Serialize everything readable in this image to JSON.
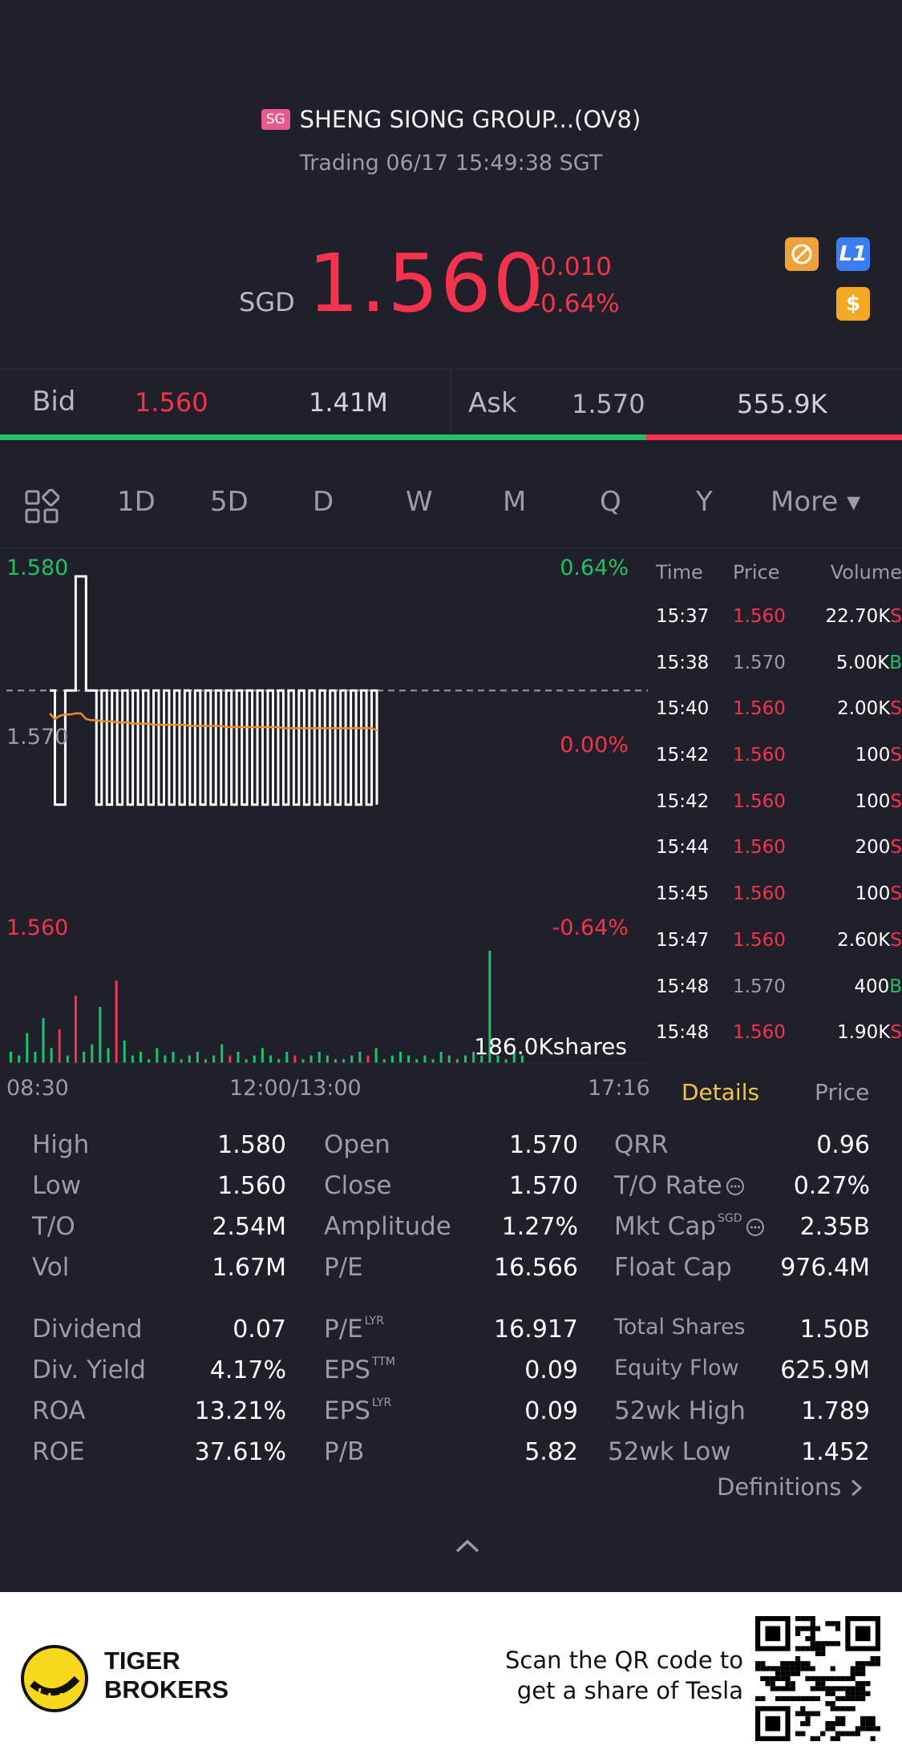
{
  "header": {
    "market_badge": "SG",
    "title": "SHENG SIONG GROUP...(OV8)",
    "subtitle": "Trading 06/17 15:49:38 SGT",
    "currency": "SGD",
    "price": "1.560",
    "change": "-0.010",
    "change_pct": "-0.64%",
    "icons": [
      "no-short-icon",
      "level1-icon",
      "dollar-icon"
    ],
    "level_badge": "L1",
    "dollar_badge": "$"
  },
  "quote": {
    "bid_label": "Bid",
    "bid_price": "1.560",
    "bid_size": "1.41M",
    "ask_label": "Ask",
    "ask_price": "1.570",
    "ask_size": "555.9K",
    "bid_ratio": 0.717
  },
  "tabs": {
    "items": [
      "1D",
      "5D",
      "D",
      "W",
      "M",
      "Q",
      "Y"
    ],
    "active": "1D",
    "more": "More ▾"
  },
  "chart_data": {
    "type": "line",
    "y_top_label": "1.580",
    "y_mid_label": "1.570",
    "y_bottom_label": "1.560",
    "pct_top_label": "0.64%",
    "pct_mid_label": "0.00%",
    "pct_bottom_label": "-0.64%",
    "ylim": [
      1.56,
      1.58
    ],
    "reference_price": 1.57,
    "x_labels": [
      "08:30",
      "12:00/13:00",
      "17:16"
    ],
    "volume_label": "186.0Kshares",
    "colors": {
      "price_line": "#ffffff",
      "avg_line": "#f08a24",
      "up": "#21c06b",
      "down": "#f6334f"
    },
    "series": [
      {
        "values": [
          1.57,
          1.56,
          1.56,
          1.57,
          1.57,
          1.58,
          1.58,
          1.57,
          1.57,
          1.56,
          1.57,
          1.56,
          1.57,
          1.56,
          1.57,
          1.56,
          1.57,
          1.56,
          1.57,
          1.56,
          1.57,
          1.56,
          1.57,
          1.56,
          1.57,
          1.56,
          1.57,
          1.56,
          1.57,
          1.56,
          1.57,
          1.56,
          1.57,
          1.56,
          1.57,
          1.56,
          1.57,
          1.56,
          1.57,
          1.56,
          1.57,
          1.56,
          1.57,
          1.56,
          1.57,
          1.56,
          1.57,
          1.56,
          1.57,
          1.56,
          1.57,
          1.56,
          1.57,
          1.56,
          1.57,
          1.56,
          1.57,
          1.56,
          1.57,
          1.56,
          1.57,
          1.56,
          1.57,
          1.56
        ]
      },
      {
        "values": [
          1.568,
          1.5675,
          1.5678,
          1.5679,
          1.5679,
          1.568,
          1.568,
          1.5675,
          1.5674,
          1.5674,
          1.5673,
          1.5673,
          1.5673,
          1.5672,
          1.5672,
          1.5672,
          1.5671,
          1.5671,
          1.5671,
          1.5671,
          1.567,
          1.567,
          1.567,
          1.567,
          1.567,
          1.567,
          1.567,
          1.5669,
          1.5669,
          1.5669,
          1.5669,
          1.5669,
          1.5669,
          1.5669,
          1.5668,
          1.5668,
          1.5668,
          1.5668,
          1.5668,
          1.5668,
          1.5668,
          1.5668,
          1.5668,
          1.5668,
          1.5668,
          1.5667,
          1.5667,
          1.5667,
          1.5667,
          1.5667,
          1.5667,
          1.5667,
          1.5667,
          1.5667,
          1.5667,
          1.5667,
          1.5667,
          1.5667,
          1.5667,
          1.5667,
          1.5667,
          1.5667,
          1.5667,
          1.5665
        ]
      }
    ],
    "volume": [
      3,
      2,
      8,
      3,
      12,
      4,
      9,
      2,
      18,
      3,
      5,
      15,
      4,
      22,
      6,
      2,
      3,
      1,
      4,
      2,
      3,
      1,
      2,
      3,
      1,
      2,
      5,
      2,
      3,
      1,
      2,
      4,
      2,
      1,
      3,
      2,
      1,
      2,
      3,
      2,
      1,
      1,
      2,
      3,
      2,
      4,
      1,
      2,
      3,
      2,
      1,
      2,
      1,
      3,
      2,
      1,
      2,
      3,
      2,
      30,
      2,
      1,
      3,
      2
    ],
    "volume_colors": [
      "g",
      "g",
      "g",
      "g",
      "g",
      "g",
      "r",
      "g",
      "r",
      "g",
      "g",
      "g",
      "g",
      "r",
      "g",
      "g",
      "g",
      "g",
      "g",
      "g",
      "g",
      "g",
      "g",
      "g",
      "g",
      "g",
      "g",
      "r",
      "g",
      "g",
      "g",
      "g",
      "g",
      "g",
      "g",
      "r",
      "g",
      "g",
      "g",
      "g",
      "g",
      "g",
      "g",
      "g",
      "r",
      "g",
      "g",
      "g",
      "g",
      "g",
      "g",
      "g",
      "g",
      "g",
      "g",
      "g",
      "g",
      "g",
      "g",
      "g",
      "g",
      "g",
      "g",
      "g"
    ]
  },
  "trades": {
    "headers": [
      "Time",
      "Price",
      "Volume"
    ],
    "rows": [
      {
        "time": "15:37",
        "price": "1.560",
        "vol": "22.70K",
        "side": "S"
      },
      {
        "time": "15:38",
        "price": "1.570",
        "vol": "5.00K",
        "side": "B"
      },
      {
        "time": "15:40",
        "price": "1.560",
        "vol": "2.00K",
        "side": "S"
      },
      {
        "time": "15:42",
        "price": "1.560",
        "vol": "100",
        "side": "S"
      },
      {
        "time": "15:42",
        "price": "1.560",
        "vol": "100",
        "side": "S"
      },
      {
        "time": "15:44",
        "price": "1.560",
        "vol": "200",
        "side": "S"
      },
      {
        "time": "15:45",
        "price": "1.560",
        "vol": "100",
        "side": "S"
      },
      {
        "time": "15:47",
        "price": "1.560",
        "vol": "2.60K",
        "side": "S"
      },
      {
        "time": "15:48",
        "price": "1.570",
        "vol": "400",
        "side": "B"
      },
      {
        "time": "15:48",
        "price": "1.560",
        "vol": "1.90K",
        "side": "S"
      }
    ],
    "tab_details": "Details",
    "tab_price": "Price"
  },
  "details": {
    "col1": [
      [
        "High",
        "1.580"
      ],
      [
        "Low",
        "1.560"
      ],
      [
        "T/O",
        "2.54M"
      ],
      [
        "Vol",
        "1.67M"
      ],
      [
        "Dividend",
        "0.07"
      ],
      [
        "Div. Yield",
        "4.17%"
      ],
      [
        "ROA",
        "13.21%"
      ],
      [
        "ROE",
        "37.61%"
      ]
    ],
    "col2": [
      [
        "Open",
        "1.570"
      ],
      [
        "Close",
        "1.570"
      ],
      [
        "Amplitude",
        "1.27%"
      ],
      [
        "P/E",
        "16.566"
      ],
      [
        "P/E",
        "16.917"
      ],
      [
        "EPS",
        "0.09"
      ],
      [
        "EPS",
        "0.09"
      ],
      [
        "P/B",
        "5.82"
      ]
    ],
    "col2_sup": [
      "",
      "",
      "",
      "",
      "LYR",
      "TTM",
      "LYR",
      ""
    ],
    "col3": [
      [
        "QRR",
        "0.96"
      ],
      [
        "T/O Rate",
        "0.27%"
      ],
      [
        "Mkt Cap",
        "2.35B"
      ],
      [
        "Float Cap",
        "976.4M"
      ],
      [
        "Total Shares",
        "1.50B"
      ],
      [
        "Equity Flow",
        "625.9M"
      ],
      [
        "52wk High",
        "1.789"
      ],
      [
        "52wk Low",
        "1.452"
      ]
    ],
    "mktcap_sup": "SGD",
    "definitions": "Definitions"
  },
  "footer": {
    "brand_line1": "TIGER",
    "brand_line2": "BROKERS",
    "promo_line1": "Scan the QR code to",
    "promo_line2": "get a share of Tesla"
  }
}
